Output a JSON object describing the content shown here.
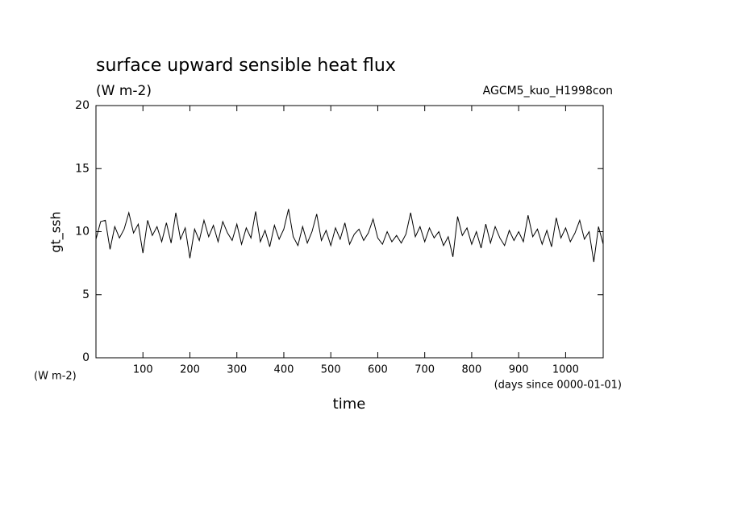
{
  "chart_data": {
    "type": "line",
    "title": "surface upward sensible heat flux",
    "subtitle": "(W m-2)",
    "annotation": "AGCM5_kuo_H1998con",
    "y_label": "gt_ssh",
    "y_unit": "(W m-2)",
    "x_label": "time",
    "x_unit": "(days since 0000-01-01)",
    "color": "#000000",
    "xlim": [
      0,
      1080
    ],
    "ylim": [
      0,
      20
    ],
    "xticks": [
      100,
      200,
      300,
      400,
      500,
      600,
      700,
      800,
      900,
      1000
    ],
    "yticks": [
      0,
      5,
      10,
      15,
      20
    ],
    "x": [
      0,
      10,
      20,
      30,
      40,
      50,
      60,
      70,
      80,
      90,
      100,
      110,
      120,
      130,
      140,
      150,
      160,
      170,
      180,
      190,
      200,
      210,
      220,
      230,
      240,
      250,
      260,
      270,
      280,
      290,
      300,
      310,
      320,
      330,
      340,
      350,
      360,
      370,
      380,
      390,
      400,
      410,
      420,
      430,
      440,
      450,
      460,
      470,
      480,
      490,
      500,
      510,
      520,
      530,
      540,
      550,
      560,
      570,
      580,
      590,
      600,
      610,
      620,
      630,
      640,
      650,
      660,
      670,
      680,
      690,
      700,
      710,
      720,
      730,
      740,
      750,
      760,
      770,
      780,
      790,
      800,
      810,
      820,
      830,
      840,
      850,
      860,
      870,
      880,
      890,
      900,
      910,
      920,
      930,
      940,
      950,
      960,
      970,
      980,
      990,
      1000,
      1010,
      1020,
      1030,
      1040,
      1050,
      1060,
      1070,
      1080
    ],
    "values": [
      9.4,
      10.8,
      10.9,
      8.6,
      10.4,
      9.5,
      10.2,
      11.5,
      9.9,
      10.6,
      8.3,
      10.9,
      9.7,
      10.4,
      9.2,
      10.7,
      9.1,
      11.5,
      9.4,
      10.3,
      7.9,
      10.2,
      9.3,
      10.9,
      9.6,
      10.5,
      9.2,
      10.8,
      9.9,
      9.3,
      10.6,
      9.0,
      10.3,
      9.5,
      11.6,
      9.2,
      10.1,
      8.8,
      10.5,
      9.4,
      10.2,
      11.8,
      9.6,
      8.9,
      10.4,
      9.1,
      10.0,
      11.4,
      9.3,
      10.1,
      8.9,
      10.3,
      9.4,
      10.7,
      9.0,
      9.8,
      10.2,
      9.3,
      9.9,
      11.0,
      9.5,
      9.0,
      10.0,
      9.2,
      9.7,
      9.1,
      9.8,
      11.5,
      9.6,
      10.4,
      9.2,
      10.3,
      9.5,
      10.0,
      8.9,
      9.6,
      8.0,
      11.2,
      9.7,
      10.3,
      9.0,
      10.0,
      8.7,
      10.6,
      9.1,
      10.4,
      9.5,
      8.9,
      10.1,
      9.3,
      10.0,
      9.2,
      11.3,
      9.6,
      10.2,
      9.0,
      10.1,
      8.8,
      11.1,
      9.5,
      10.3,
      9.2,
      9.9,
      10.9,
      9.4,
      10.0,
      7.6,
      10.4,
      9.0
    ]
  }
}
